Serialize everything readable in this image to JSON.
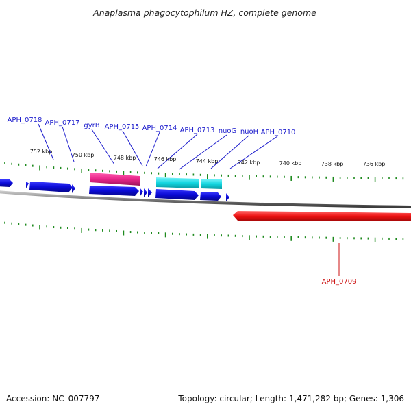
{
  "title": "Anaplasma phagocytophilum HZ, complete genome",
  "footer": {
    "accession": "Accession: NC_007797",
    "summary": "Topology: circular; Length: 1,471,282 bp; Genes: 1,306"
  },
  "colors": {
    "forward_gene": "#0a0ad6",
    "gyrB": "#e8268a",
    "nuo": "#12d6e0",
    "reverse_gene": "#ee1111",
    "ticks": "#1e8a1e",
    "backbone": "#808080",
    "label_forward": "#1a1acc",
    "label_reverse": "#cc1111"
  },
  "kbp_labels": [
    "752 kbp",
    "750 kbp",
    "748 kbp",
    "746 kbp",
    "744 kbp",
    "742 kbp",
    "740 kbp",
    "738 kbp",
    "736 kbp"
  ],
  "gene_labels": {
    "APH_0718": "APH_0718",
    "APH_0717": "APH_0717",
    "gyrB": "gyrB",
    "APH_0715": "APH_0715",
    "APH_0714": "APH_0714",
    "APH_0713": "APH_0713",
    "nuoG": "nuoG",
    "nuoH": "nuoH",
    "APH_0710": "APH_0710",
    "APH_0709": "APH_0709"
  }
}
